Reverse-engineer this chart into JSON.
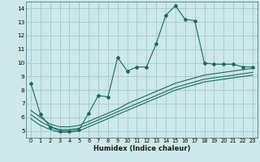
{
  "title": "",
  "xlabel": "Humidex (Indice chaleur)",
  "bg_color": "#cce8e8",
  "grid_color": "#aacccc",
  "line_color": "#1a6b5a",
  "xlim": [
    -0.5,
    23.5
  ],
  "ylim": [
    4.5,
    14.5
  ],
  "xticks": [
    0,
    1,
    2,
    3,
    4,
    5,
    6,
    7,
    8,
    9,
    10,
    11,
    12,
    13,
    14,
    15,
    16,
    17,
    18,
    19,
    20,
    21,
    22,
    23
  ],
  "yticks": [
    5,
    6,
    7,
    8,
    9,
    10,
    11,
    12,
    13,
    14
  ],
  "main_line_x": [
    0,
    1,
    2,
    3,
    4,
    5,
    6,
    7,
    8,
    9,
    10,
    11,
    12,
    13,
    14,
    15,
    16,
    17,
    18,
    19,
    20,
    21,
    22,
    23
  ],
  "main_line_y": [
    8.5,
    6.2,
    5.3,
    5.0,
    5.0,
    5.1,
    6.3,
    7.6,
    7.5,
    10.4,
    9.4,
    9.7,
    9.7,
    11.4,
    13.5,
    14.2,
    13.2,
    13.1,
    10.0,
    9.9,
    9.9,
    9.9,
    9.7,
    9.7
  ],
  "lower_line1_x": [
    0,
    1,
    2,
    3,
    4,
    5,
    6,
    7,
    8,
    9,
    10,
    11,
    12,
    13,
    14,
    15,
    16,
    17,
    18,
    19,
    20,
    21,
    22,
    23
  ],
  "lower_line1_y": [
    6.5,
    6.0,
    5.5,
    5.3,
    5.3,
    5.4,
    5.7,
    6.0,
    6.3,
    6.6,
    7.0,
    7.3,
    7.6,
    7.9,
    8.2,
    8.5,
    8.7,
    8.9,
    9.1,
    9.2,
    9.3,
    9.4,
    9.5,
    9.6
  ],
  "lower_line2_x": [
    0,
    1,
    2,
    3,
    4,
    5,
    6,
    7,
    8,
    9,
    10,
    11,
    12,
    13,
    14,
    15,
    16,
    17,
    18,
    19,
    20,
    21,
    22,
    23
  ],
  "lower_line2_y": [
    6.2,
    5.7,
    5.3,
    5.1,
    5.1,
    5.2,
    5.5,
    5.8,
    6.1,
    6.4,
    6.7,
    7.0,
    7.3,
    7.6,
    7.9,
    8.2,
    8.4,
    8.6,
    8.8,
    8.9,
    9.0,
    9.1,
    9.2,
    9.3
  ],
  "lower_line3_x": [
    0,
    1,
    2,
    3,
    4,
    5,
    6,
    7,
    8,
    9,
    10,
    11,
    12,
    13,
    14,
    15,
    16,
    17,
    18,
    19,
    20,
    21,
    22,
    23
  ],
  "lower_line3_y": [
    5.9,
    5.4,
    5.1,
    4.9,
    4.9,
    5.0,
    5.3,
    5.6,
    5.9,
    6.2,
    6.5,
    6.8,
    7.1,
    7.4,
    7.7,
    8.0,
    8.2,
    8.4,
    8.6,
    8.7,
    8.8,
    8.9,
    9.0,
    9.1
  ]
}
